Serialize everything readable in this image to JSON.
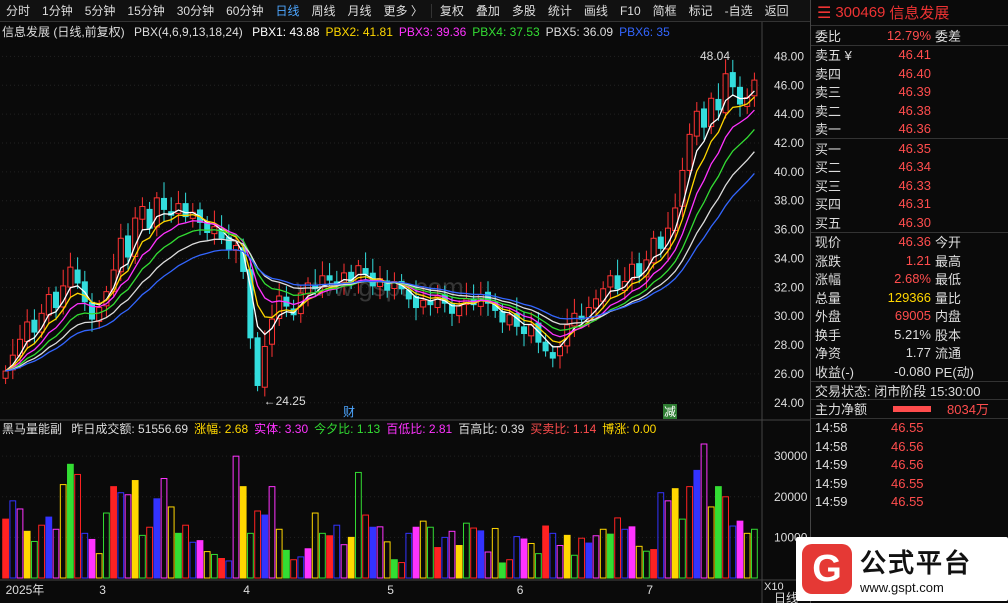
{
  "toolbar": {
    "periods": [
      "分时",
      "1分钟",
      "5分钟",
      "15分钟",
      "30分钟",
      "60分钟",
      "日线",
      "周线",
      "月线",
      "更多 〉"
    ],
    "active": "日线",
    "tools": [
      "复权",
      "叠加",
      "多股",
      "统计",
      "画线",
      "F10",
      "简框",
      "标记",
      "-自选",
      "返回"
    ]
  },
  "chart_title": {
    "name": "信息发展 (日线,前复权)",
    "indicator": "PBX(4,6,9,13,18,24)",
    "pbx": [
      {
        "label": "PBX1: 43.88",
        "color": "#ffffff"
      },
      {
        "label": "PBX2: 41.81",
        "color": "#ffd700"
      },
      {
        "label": "PBX3: 39.36",
        "color": "#ff33ff"
      },
      {
        "label": "PBX4: 37.53",
        "color": "#33dd33"
      },
      {
        "label": "PBX5: 36.09",
        "color": "#dddddd"
      },
      {
        "label": "PBX6: 35",
        "color": "#3366ff"
      }
    ]
  },
  "indicator_title": {
    "name": "黑马量能副",
    "items": [
      {
        "label": "昨日成交额: 51556.69",
        "color": "#dddddd"
      },
      {
        "label": "涨幅: 2.68",
        "color": "#ffd700"
      },
      {
        "label": "实体: 3.30",
        "color": "#ff33ff"
      },
      {
        "label": "今夕比: 1.13",
        "color": "#33dd33"
      },
      {
        "label": "百低比: 2.81",
        "color": "#ff33ff"
      },
      {
        "label": "百高比: 0.39",
        "color": "#dddddd"
      },
      {
        "label": "买卖比: 1.14",
        "color": "#ff4d4d"
      },
      {
        "label": "博涨: 0.00",
        "color": "#ffd700"
      }
    ]
  },
  "markers": {
    "high": "48.04",
    "low": "24.25",
    "cai": "财",
    "jian": "减",
    "x10": "X10",
    "rixian": "日线"
  },
  "watermark": "www.gspt.com",
  "quote": {
    "code": "300469",
    "name": "信息发展",
    "weibi": {
      "label": "委比",
      "value": "12.79%",
      "right": "委差"
    },
    "asks": [
      {
        "label": "卖五 ¥",
        "value": "46.41"
      },
      {
        "label": "卖四",
        "value": "46.40"
      },
      {
        "label": "卖三",
        "value": "46.39"
      },
      {
        "label": "卖二",
        "value": "46.38"
      },
      {
        "label": "卖一",
        "value": "46.36"
      }
    ],
    "bids": [
      {
        "label": "买一",
        "value": "46.35"
      },
      {
        "label": "买二",
        "value": "46.34"
      },
      {
        "label": "买三",
        "value": "46.33"
      },
      {
        "label": "买四",
        "value": "46.31"
      },
      {
        "label": "买五",
        "value": "46.30"
      }
    ],
    "stats": [
      {
        "label": "现价",
        "value": "46.36",
        "right": "今开",
        "cls": "red"
      },
      {
        "label": "涨跌",
        "value": "1.21",
        "right": "最高",
        "cls": "red"
      },
      {
        "label": "涨幅",
        "value": "2.68%",
        "right": "最低",
        "cls": "red"
      },
      {
        "label": "总量",
        "value": "129366",
        "right": "量比",
        "cls": "yel"
      },
      {
        "label": "外盘",
        "value": "69005",
        "right": "内盘",
        "cls": "red"
      },
      {
        "label": "换手",
        "value": "5.21%",
        "right": "股本",
        "cls": "wht"
      },
      {
        "label": "净资",
        "value": "1.77",
        "right": "流通",
        "cls": "wht"
      },
      {
        "label": "收益(-)",
        "value": "-0.080",
        "right": "PE(动)",
        "cls": "wht"
      }
    ],
    "status": "交易状态: 闭市阶段 15:30:00",
    "net_label": "主力净额",
    "net_value": "8034万",
    "ticks": [
      {
        "time": "14:58",
        "price": "46.55"
      },
      {
        "time": "14:58",
        "price": "46.56"
      },
      {
        "time": "14:59",
        "price": "46.56"
      },
      {
        "time": "14:59",
        "price": "46.55"
      },
      {
        "time": "14:59",
        "price": "46.55"
      }
    ]
  },
  "logo": {
    "title": "公式平台",
    "url": "www.gspt.com"
  },
  "chart_data": [
    {
      "type": "candlestick",
      "title": "信息发展 (日线,前复权)",
      "ylim": [
        23.5,
        49
      ],
      "yticks": [
        24,
        26,
        28,
        30,
        32,
        34,
        36,
        38,
        40,
        42,
        44,
        46,
        48
      ],
      "x_month_labels": [
        {
          "label": "2025年",
          "idx": 0
        },
        {
          "label": "3",
          "idx": 13
        },
        {
          "label": "4",
          "idx": 33
        },
        {
          "label": "5",
          "idx": 53
        },
        {
          "label": "6",
          "idx": 71
        },
        {
          "label": "7",
          "idx": 89
        }
      ],
      "close": [
        26.2,
        27.3,
        28.4,
        29.6,
        28.9,
        30.2,
        31.5,
        30.6,
        32.1,
        33.4,
        32.3,
        31.0,
        29.8,
        30.6,
        31.7,
        33.2,
        35.4,
        34.1,
        36.8,
        37.6,
        36.1,
        38.2,
        37.4,
        37.0,
        37.8,
        36.9,
        37.2,
        36.5,
        35.8,
        36.2,
        35.4,
        34.6,
        34.9,
        33.1,
        28.5,
        25.2,
        27.9,
        29.8,
        31.4,
        30.7,
        30.1,
        31.6,
        32.3,
        31.9,
        32.8,
        32.5,
        32.2,
        33.0,
        32.4,
        33.5,
        32.9,
        32.1,
        32.6,
        31.8,
        32.4,
        31.9,
        31.2,
        30.6,
        31.1,
        30.8,
        31.4,
        30.9,
        30.2,
        30.7,
        31.2,
        30.8,
        31.5,
        30.9,
        30.4,
        29.6,
        30.1,
        29.3,
        28.8,
        29.4,
        28.2,
        27.6,
        27.1,
        27.9,
        29.4,
        30.2,
        29.8,
        30.6,
        31.2,
        31.9,
        32.8,
        31.9,
        32.4,
        33.6,
        32.8,
        33.9,
        35.4,
        34.7,
        36.1,
        37.5,
        40.1,
        42.6,
        44.2,
        43.1,
        45.1,
        44.3,
        46.8,
        45.9,
        44.7,
        45.15,
        46.36
      ],
      "high_marker": {
        "value": 48.04,
        "idx": 102
      },
      "low_marker": {
        "value": 24.25,
        "idx": 35
      }
    },
    {
      "type": "bar",
      "title": "黑马量能副",
      "ylim": [
        0,
        33000
      ],
      "yticks": [
        10000,
        20000,
        30000
      ],
      "volume": [
        14500,
        19000,
        17000,
        11500,
        9000,
        13000,
        15000,
        12000,
        23000,
        28000,
        25500,
        11000,
        9500,
        6000,
        16000,
        22500,
        21000,
        20500,
        24000,
        10500,
        12500,
        19500,
        24500,
        17500,
        11000,
        13000,
        8800,
        9200,
        6500,
        5800,
        4800,
        4200,
        30000,
        22500,
        11000,
        16500,
        15500,
        22500,
        12000,
        6800,
        4500,
        5200,
        7200,
        16000,
        11000,
        10400,
        13000,
        8200,
        10000,
        26000,
        15500,
        12500,
        12600,
        8900,
        4500,
        3800,
        11000,
        12500,
        14000,
        12500,
        7500,
        10000,
        11500,
        8000,
        13500,
        12300,
        11600,
        6400,
        12200,
        3700,
        4500,
        10200,
        9600,
        8500,
        6000,
        12800,
        11000,
        8000,
        10500,
        5600,
        9800,
        8600,
        10400,
        12000,
        10800,
        14800,
        12000,
        12600,
        7800,
        6600,
        7000,
        21000,
        19000,
        22000,
        14500,
        22500,
        26500,
        33000,
        17500,
        22500,
        20000,
        12800,
        14000,
        11000,
        12000
      ],
      "colors": [
        "#ff2222",
        "#3333ff",
        "#ff33ff",
        "#ffd700",
        "#33dd33"
      ]
    }
  ]
}
